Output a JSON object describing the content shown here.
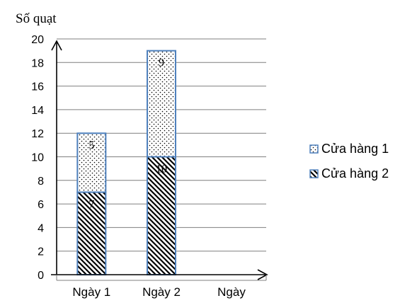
{
  "chart_data": {
    "type": "bar",
    "stacked": true,
    "ylabel": "Số quạt",
    "xlabel": "Ngày",
    "categories": [
      "Ngày 1",
      "Ngày 2"
    ],
    "ylim": [
      0,
      20
    ],
    "y_tick_step": 2,
    "grid": true,
    "legend_position": "right",
    "series": [
      {
        "name": "Cửa hàng 2",
        "values": [
          7,
          10
        ],
        "pattern": "diagonal-hatch"
      },
      {
        "name": "Cửa hàng 1",
        "values": [
          5,
          9
        ],
        "pattern": "dots"
      }
    ],
    "colors": {
      "bar_border": "#4f81bd",
      "grid": "#7f7f7f",
      "axis": "#000000"
    }
  }
}
